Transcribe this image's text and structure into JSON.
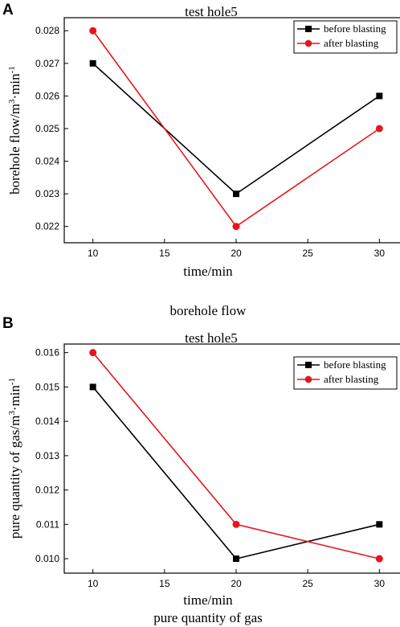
{
  "chart_data": [
    {
      "type": "line",
      "panel": "A",
      "title": "test hole5",
      "xlabel": "time/min",
      "ylabel_main": "borehole flow/m",
      "ylabel_sup1": "3",
      "ylabel_mid": "·min",
      "ylabel_sup2": "-1",
      "caption": "borehole flow",
      "x": [
        10,
        20,
        30
      ],
      "xlim": [
        8,
        32
      ],
      "ylim": [
        0.0215,
        0.0284
      ],
      "xticks": [
        10,
        15,
        20,
        25,
        30
      ],
      "xtick_labels": [
        "10",
        "15",
        "20",
        "25",
        "30"
      ],
      "yticks": [
        0.022,
        0.023,
        0.024,
        0.025,
        0.026,
        0.027,
        0.028
      ],
      "ytick_labels": [
        "0.022",
        "0.023",
        "0.024",
        "0.025",
        "0.026",
        "0.027",
        "0.028"
      ],
      "legend_position": "top-right",
      "series": [
        {
          "name": "before blasting",
          "values": [
            0.027,
            0.023,
            0.026
          ],
          "color": "#000000",
          "marker": "square"
        },
        {
          "name": "after blasting",
          "values": [
            0.028,
            0.022,
            0.025
          ],
          "color": "#e8141c",
          "marker": "circle"
        }
      ]
    },
    {
      "type": "line",
      "panel": "B",
      "title": "test hole5",
      "xlabel": "time/min",
      "ylabel_main": "pure quantity of gas/m",
      "ylabel_sup1": "3",
      "ylabel_mid": "·min",
      "ylabel_sup2": "-1",
      "caption": "pure quantity of gas",
      "x": [
        10,
        20,
        30
      ],
      "xlim": [
        8,
        32
      ],
      "ylim": [
        0.00958,
        0.01625
      ],
      "xticks": [
        10,
        15,
        20,
        25,
        30
      ],
      "xtick_labels": [
        "10",
        "15",
        "20",
        "25",
        "30"
      ],
      "yticks": [
        0.01,
        0.011,
        0.012,
        0.013,
        0.014,
        0.015,
        0.016
      ],
      "ytick_labels": [
        "0.010",
        "0.011",
        "0.012",
        "0.013",
        "0.014",
        "0.015",
        "0.016"
      ],
      "legend_position": "top-right",
      "series": [
        {
          "name": "before blasting",
          "values": [
            0.015,
            0.01,
            0.011
          ],
          "color": "#000000",
          "marker": "square"
        },
        {
          "name": "after blasting",
          "values": [
            0.016,
            0.011,
            0.01
          ],
          "color": "#e8141c",
          "marker": "circle"
        }
      ]
    }
  ]
}
